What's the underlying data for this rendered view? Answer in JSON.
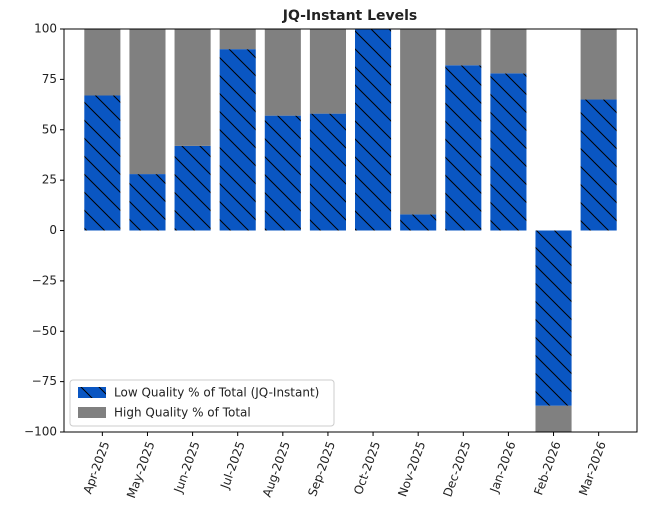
{
  "chart_data": {
    "type": "stacked-bar",
    "title": "JQ-Instant Levels",
    "categories": [
      "Apr-2025",
      "May-2025",
      "Jun-2025",
      "Jul-2025",
      "Aug-2025",
      "Sep-2025",
      "Oct-2025",
      "Nov-2025",
      "Dec-2025",
      "Jan-2026",
      "Feb-2026",
      "Mar-2026"
    ],
    "series": [
      {
        "name": "Low Quality % of Total (JQ-Instant)",
        "color": "#0a56c2",
        "hatch": "\\",
        "values": [
          67,
          28,
          42,
          90,
          57,
          58,
          100,
          8,
          82,
          78,
          -87,
          65
        ]
      },
      {
        "name": "High Quality % of Total",
        "color": "#808080",
        "values": [
          33,
          72,
          58,
          10,
          43,
          42,
          0,
          92,
          18,
          22,
          -13,
          35
        ]
      }
    ],
    "ylim": [
      -100,
      100
    ],
    "yticks": [
      {
        "value": -100,
        "label": "−100"
      },
      {
        "value": -75,
        "label": "−75"
      },
      {
        "value": -50,
        "label": "−50"
      },
      {
        "value": -25,
        "label": "−25"
      },
      0,
      25,
      50,
      75,
      100
    ],
    "grid": false,
    "legend": "lower left"
  }
}
